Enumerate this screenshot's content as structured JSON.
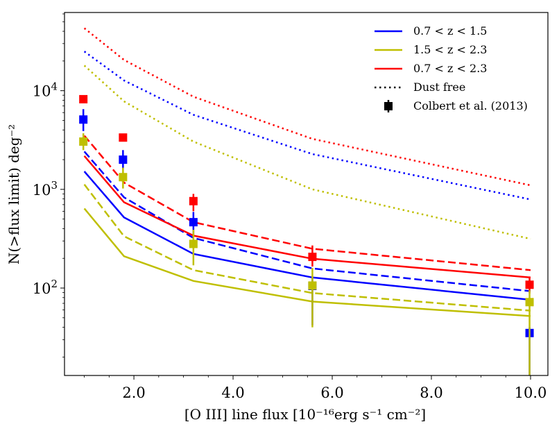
{
  "chart_data": {
    "type": "line",
    "title": "",
    "xlabel": "[O III] line flux [10⁻¹⁶erg s⁻¹ cm⁻²]",
    "ylabel": "N(>flux limit) deg⁻²",
    "xlim": [
      0.6,
      10.35
    ],
    "ylim": [
      13,
      62000
    ],
    "yscale": "log",
    "xticks": [
      2.0,
      4.0,
      6.0,
      8.0,
      10.0
    ],
    "xtick_labels": [
      "2.0",
      "4.0",
      "6.0",
      "8.0",
      "10.0"
    ],
    "yticks": [
      100,
      1000,
      10000
    ],
    "ytick_labels": [
      {
        "base": "10",
        "exp": "2"
      },
      {
        "base": "10",
        "exp": "3"
      },
      {
        "base": "10",
        "exp": "4"
      }
    ],
    "grid": false,
    "legend_position": "top-right",
    "legend": [
      {
        "label": "0.7 < z < 1.5",
        "color": "#0000ff",
        "style": "solid"
      },
      {
        "label": "1.5 < z < 2.3",
        "color": "#bfbf00",
        "style": "solid"
      },
      {
        "label": "0.7 < z < 2.3",
        "color": "#ff0000",
        "style": "solid"
      },
      {
        "label": "Dust free",
        "color": "#000000",
        "style": "dotted"
      },
      {
        "label": "Colbert et al. (2013)",
        "color": "#000000",
        "style": "marker"
      }
    ],
    "x": [
      1.0,
      1.8,
      3.2,
      5.6,
      10.0
    ],
    "series": [
      {
        "group": "0.7 < z < 1.5",
        "color": "#0000ff",
        "style": "solid",
        "values": [
          1520,
          520,
          222,
          128,
          76
        ]
      },
      {
        "group": "0.7 < z < 1.5",
        "color": "#0000ff",
        "style": "dashed",
        "values": [
          2420,
          830,
          322,
          158,
          93
        ]
      },
      {
        "group": "0.7 < z < 1.5",
        "color": "#0000ff",
        "style": "dotted",
        "values": [
          25000,
          12700,
          5700,
          2280,
          790
        ]
      },
      {
        "group": "1.5 < z < 2.3",
        "color": "#bfbf00",
        "style": "solid",
        "values": [
          640,
          210,
          118,
          73,
          52
        ]
      },
      {
        "group": "1.5 < z < 2.3",
        "color": "#bfbf00",
        "style": "dashed",
        "values": [
          1120,
          335,
          152,
          89,
          59
        ]
      },
      {
        "group": "1.5 < z < 2.3",
        "color": "#bfbf00",
        "style": "dotted",
        "values": [
          18000,
          7800,
          3050,
          1000,
          315
        ]
      },
      {
        "group": "0.7 < z < 2.3",
        "color": "#ff0000",
        "style": "solid",
        "values": [
          2180,
          740,
          340,
          198,
          128
        ]
      },
      {
        "group": "0.7 < z < 2.3",
        "color": "#ff0000",
        "style": "dashed",
        "values": [
          3500,
          1170,
          465,
          250,
          152
        ]
      },
      {
        "group": "0.7 < z < 2.3",
        "color": "#ff0000",
        "style": "dotted",
        "values": [
          43000,
          20500,
          8700,
          3250,
          1100
        ]
      }
    ],
    "observations": [
      {
        "group": "0.7 < z < 2.3",
        "color": "#ff0000",
        "points": [
          {
            "x": 0.98,
            "y": 8200,
            "lo": 8200,
            "hi": 8200
          },
          {
            "x": 1.78,
            "y": 3350,
            "lo": 3350,
            "hi": 3350
          },
          {
            "x": 3.2,
            "y": 760,
            "lo": 600,
            "hi": 900
          },
          {
            "x": 5.6,
            "y": 207,
            "lo": 165,
            "hi": 270
          },
          {
            "x": 9.98,
            "y": 108,
            "lo": 88,
            "hi": 130
          }
        ]
      },
      {
        "group": "0.7 < z < 1.5",
        "color": "#0000ff",
        "points": [
          {
            "x": 0.98,
            "y": 5100,
            "lo": 3900,
            "hi": 6500
          },
          {
            "x": 1.78,
            "y": 2000,
            "lo": 1620,
            "hi": 2500
          },
          {
            "x": 3.2,
            "y": 465,
            "lo": 350,
            "hi": 590
          },
          {
            "x": 5.6,
            "y": 105,
            "lo": 42,
            "hi": 130
          },
          {
            "x": 9.98,
            "y": 35,
            "lo": 13,
            "hi": 40
          }
        ]
      },
      {
        "group": "1.5 < z < 2.3",
        "color": "#bfbf00",
        "points": [
          {
            "x": 0.98,
            "y": 3050,
            "lo": 2500,
            "hi": 3700
          },
          {
            "x": 1.78,
            "y": 1330,
            "lo": 1020,
            "hi": 1660
          },
          {
            "x": 3.2,
            "y": 280,
            "lo": 170,
            "hi": 390
          },
          {
            "x": 5.6,
            "y": 106,
            "lo": 40,
            "hi": 160
          },
          {
            "x": 9.98,
            "y": 72,
            "lo": 13,
            "hi": 95
          }
        ]
      }
    ]
  }
}
